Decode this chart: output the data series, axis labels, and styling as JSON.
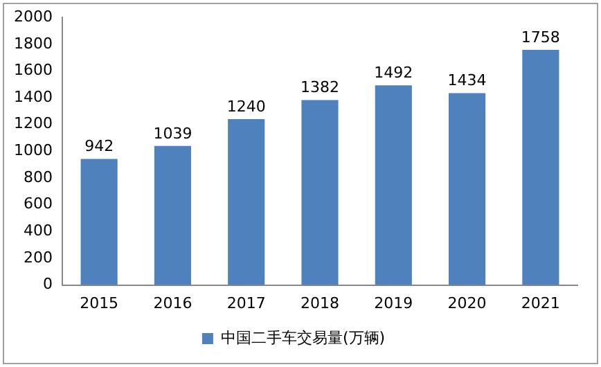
{
  "chart_data": {
    "type": "bar",
    "categories": [
      "2015",
      "2016",
      "2017",
      "2018",
      "2019",
      "2020",
      "2021"
    ],
    "series": [
      {
        "name": "中国二手车交易量(万辆)",
        "color": "#4f81bd",
        "values": [
          942,
          1039,
          1240,
          1382,
          1492,
          1434,
          1758
        ]
      }
    ],
    "ylim": [
      0,
      2000
    ],
    "yticks": [
      0,
      200,
      400,
      600,
      800,
      1000,
      1200,
      1400,
      1600,
      1800,
      2000
    ],
    "grid": false,
    "legend": "bottom",
    "data_labels": true
  }
}
